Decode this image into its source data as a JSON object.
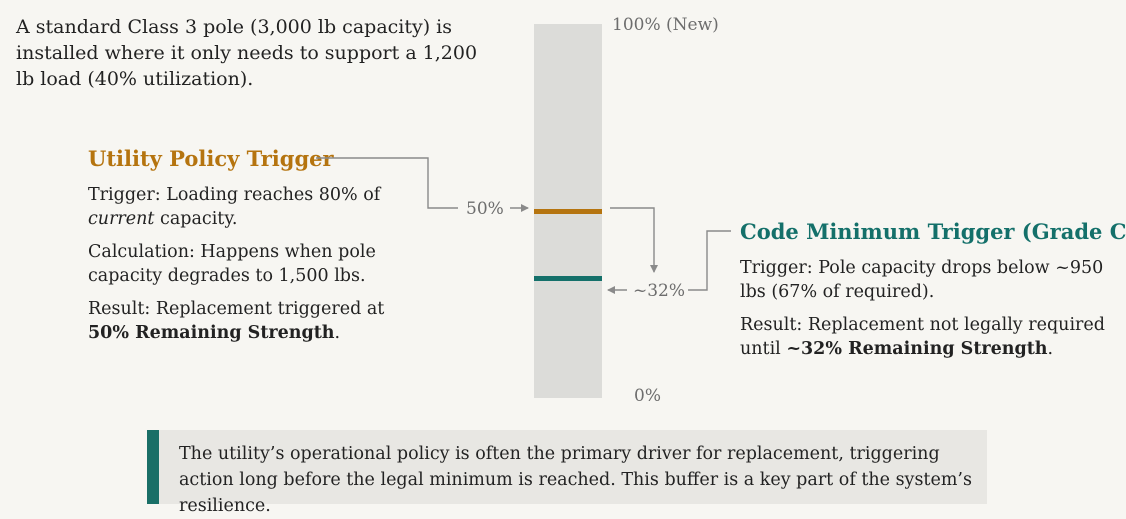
{
  "colors": {
    "policy": "#b5740f",
    "code": "#14706a",
    "bar": "#dcdcd9",
    "connector": "#8a8a8a",
    "callout_accent": "#1a6f67",
    "callout_bg": "#e8e7e3"
  },
  "intro": "A standard Class 3 pole (3,000 lb capacity) is installed where it only needs to support a 1,200 lb load (40% utilization).",
  "scale": {
    "top_label": "100% (New)",
    "bottom_label": "0%",
    "policy_marker_label": "50%",
    "code_marker_label": "~32%",
    "policy_level_pct": 50,
    "code_level_pct": 32
  },
  "policy": {
    "title": "Utility Policy Trigger",
    "trigger_prefix": "Trigger: Loading reaches 80% of ",
    "trigger_emphasis": "current",
    "trigger_suffix": " capacity.",
    "calculation": "Calculation: Happens when pole capacity degrades to 1,500 lbs.",
    "result_prefix": "Result: Replacement triggered at ",
    "result_bold": "50% Remaining Strength",
    "result_suffix": "."
  },
  "code": {
    "title": "Code Minimum Trigger (Grade C)",
    "trigger": "Trigger: Pole capacity drops below ~950 lbs (67% of required).",
    "result_prefix": "Result: Replacement not legally required until ",
    "result_bold": "~32% Remaining Strength",
    "result_suffix": "."
  },
  "callout": "The utility’s operational policy is often the primary driver for replacement, triggering action long before the legal minimum is reached. This buffer is a key part of the system’s resilience."
}
